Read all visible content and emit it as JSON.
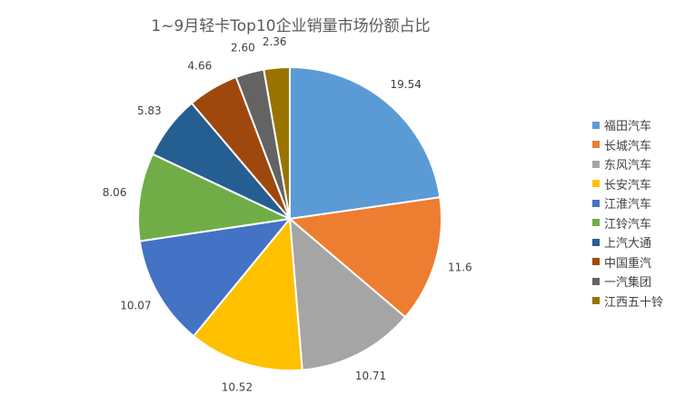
{
  "chart_data": {
    "type": "pie",
    "title": "1~9月轻卡Top10企业销量市场份额占比",
    "categories": [
      "福田汽车",
      "长城汽车",
      "东风汽车",
      "长安汽车",
      "江淮汽车",
      "江铃汽车",
      "上汽大通",
      "中国重汽",
      "一汽集团",
      "江西五十铃"
    ],
    "values": [
      19.54,
      11.6,
      10.71,
      10.52,
      10.07,
      8.06,
      5.83,
      4.66,
      2.6,
      2.36
    ],
    "data_labels": [
      "19.54",
      "11.6",
      "10.71",
      "10.52",
      "10.07",
      "8.06",
      "5.83",
      "4.66",
      "2.60",
      "2.36"
    ],
    "colors": [
      "#5B9BD5",
      "#ED7D31",
      "#A5A5A5",
      "#FFC000",
      "#4472C4",
      "#70AD47",
      "#255E91",
      "#9E480E",
      "#636363",
      "#997300"
    ],
    "legend_position": "right",
    "start_angle": "12 o'clock",
    "direction": "clockwise"
  }
}
